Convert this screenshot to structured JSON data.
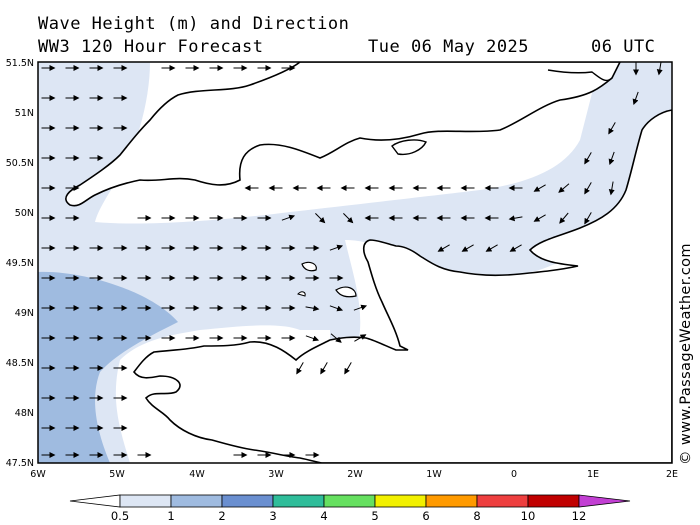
{
  "header": {
    "line1": "Wave Height (m) and Direction",
    "line2": "WW3 120 Hour Forecast",
    "datetime": "Tue 06 May 2025",
    "time": "06 UTC"
  },
  "credit": "© www.PassageWeather.com",
  "axes": {
    "lat_labels": [
      "51.5N",
      "51N",
      "50.5N",
      "50N",
      "49.5N",
      "49N",
      "48.5N",
      "48N",
      "47.5N"
    ],
    "lon_labels": [
      "6W",
      "5W",
      "4W",
      "3W",
      "2W",
      "1W",
      "0",
      "1E",
      "2E"
    ]
  },
  "legend": {
    "labels": [
      "0.5",
      "1",
      "2",
      "3",
      "4",
      "5",
      "6",
      "8",
      "10",
      "12"
    ],
    "colors": [
      "#ffffff",
      "#dde6f4",
      "#9fbbe0",
      "#6a8fd0",
      "#2fbd9a",
      "#66e060",
      "#f2f000",
      "#ff9a00",
      "#ee3f3f",
      "#c00000",
      "#c23fd3"
    ]
  },
  "colors": {
    "sea_light": "#dde6f4",
    "sea_mid": "#9fbbe0",
    "land": "#ffffff",
    "coast": "#000000"
  }
}
